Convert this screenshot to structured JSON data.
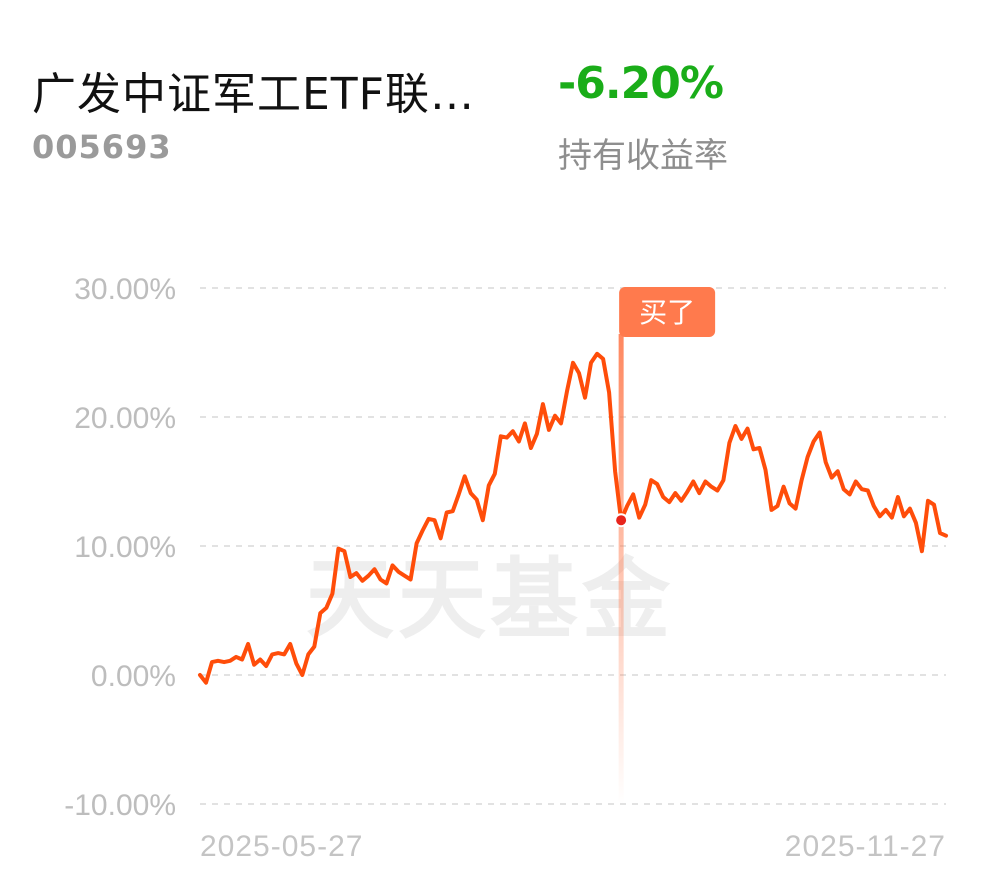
{
  "header": {
    "fund_name": "广发中证军工ETF联…",
    "fund_code": "005693",
    "return_value": "-6.20%",
    "return_label": "持有收益率",
    "return_color": "#1aad19"
  },
  "watermark": "天天基金",
  "marker": {
    "label": "买了",
    "date_index": 70,
    "color": "#ff7a4d"
  },
  "chart_data": {
    "type": "line",
    "title": "",
    "xlabel": "",
    "ylabel": "",
    "ylim": [
      -10,
      30
    ],
    "yticks": [
      30,
      20,
      10,
      0,
      -10
    ],
    "ytick_labels": [
      "30.00%",
      "20.00%",
      "10.00%",
      "0.00%",
      "-10.00%"
    ],
    "xtick_labels": [
      "2025-05-27",
      "2025-11-27"
    ],
    "grid": true,
    "line_color": "#ff4d0a",
    "series": [
      {
        "name": "",
        "values": [
          0.0,
          -0.6,
          1.0,
          1.1,
          1.0,
          1.1,
          1.4,
          1.2,
          2.4,
          0.8,
          1.2,
          0.7,
          1.6,
          1.7,
          1.6,
          2.4,
          0.9,
          0.0,
          1.6,
          2.2,
          4.8,
          5.2,
          6.3,
          9.8,
          9.6,
          7.6,
          7.9,
          7.3,
          7.7,
          8.2,
          7.4,
          7.1,
          8.5,
          8.0,
          7.7,
          7.4,
          10.2,
          11.2,
          12.1,
          12.0,
          10.6,
          12.6,
          12.7,
          14.0,
          15.4,
          14.1,
          13.6,
          12.0,
          14.7,
          15.6,
          18.5,
          18.4,
          18.9,
          18.1,
          19.5,
          17.6,
          18.7,
          21.0,
          19.0,
          20.1,
          19.5,
          22.0,
          24.2,
          23.4,
          21.5,
          24.2,
          24.9,
          24.5,
          21.9,
          15.8,
          12.0,
          13.1,
          14.0,
          12.2,
          13.2,
          15.1,
          14.8,
          13.8,
          13.4,
          14.1,
          13.5,
          14.2,
          15.0,
          14.1,
          15.0,
          14.6,
          14.3,
          15.1,
          18.0,
          19.3,
          18.3,
          19.1,
          17.5,
          17.6,
          15.9,
          12.8,
          13.1,
          14.6,
          13.3,
          12.9,
          15.1,
          16.9,
          18.1,
          18.8,
          16.5,
          15.3,
          15.8,
          14.4,
          14.0,
          15.0,
          14.4,
          14.3,
          13.1,
          12.3,
          12.8,
          12.2,
          13.8,
          12.3,
          12.9,
          11.8,
          9.6,
          13.5,
          13.2,
          11.0,
          10.8
        ]
      }
    ]
  }
}
